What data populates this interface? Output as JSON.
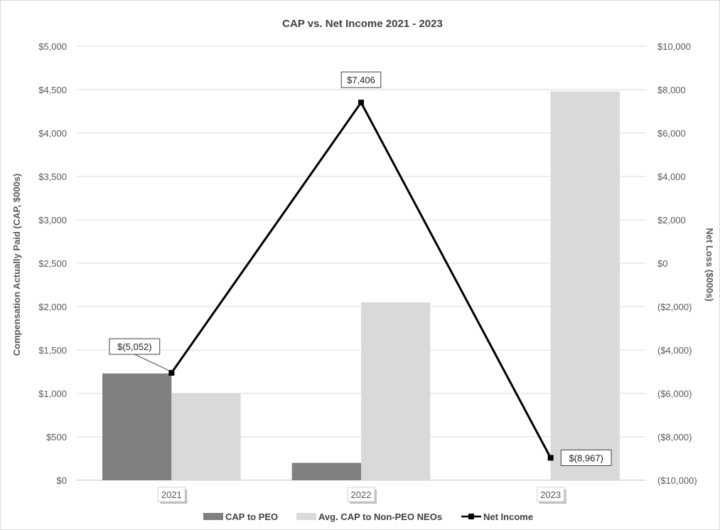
{
  "chart_data": {
    "type": "bar",
    "title": "CAP vs. Net Income 2021 - 2023",
    "categories": [
      "2021",
      "2022",
      "2023"
    ],
    "y_left": {
      "label": "Compensation Actually Paid (CAP, $000s)",
      "range": [
        0,
        5000
      ],
      "tick_step": 500,
      "ticks": [
        "$0",
        "$500",
        "$1,000",
        "$1,500",
        "$2,000",
        "$2,500",
        "$3,000",
        "$3,500",
        "$4,000",
        "$4,500",
        "$5,000"
      ]
    },
    "y_right": {
      "label": "Net Loss ($000s)",
      "range": [
        -10000,
        10000
      ],
      "tick_step": 2000,
      "ticks": [
        "($10,000)",
        "($8,000)",
        "($6,000)",
        "($4,000)",
        "($2,000)",
        "$0",
        "$2,000",
        "$4,000",
        "$6,000",
        "$8,000",
        "$10,000"
      ]
    },
    "series": [
      {
        "name": "CAP to PEO",
        "kind": "bar",
        "axis": "left",
        "color": "#808080",
        "values": [
          1230,
          200,
          0
        ]
      },
      {
        "name": "Avg. CAP to Non-PEO NEOs",
        "kind": "bar",
        "axis": "left",
        "color": "#d9d9d9",
        "values": [
          1000,
          2050,
          4480
        ]
      },
      {
        "name": "Net Income",
        "kind": "line",
        "axis": "right",
        "color": "#000000",
        "values": [
          -5052,
          7406,
          -8967
        ],
        "data_labels": [
          "$(5,052)",
          "$7,406",
          "$(8,967)"
        ]
      }
    ],
    "grid": true,
    "legend_position": "bottom"
  }
}
